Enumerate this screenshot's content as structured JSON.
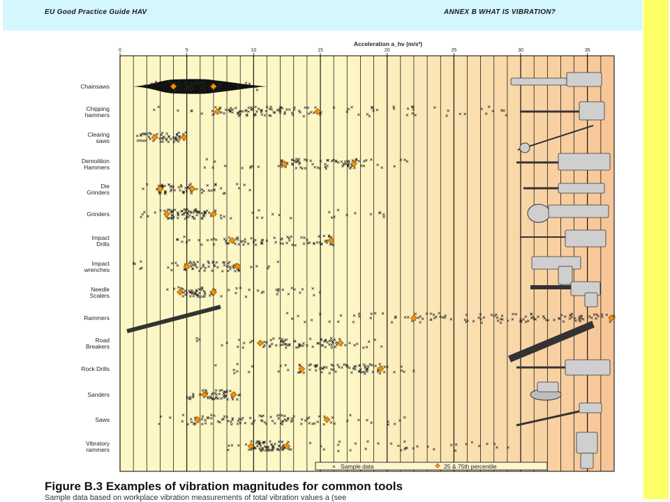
{
  "header": {
    "left": "EU Good Practice Guide HAV",
    "right": "ANNEX B WHAT IS VIBRATION?"
  },
  "caption": {
    "title": "Figure B.3 Examples of vibration magnitudes for common tools",
    "subtitle": "Sample data based on workplace vibration measurements of total vibration values a  (see"
  },
  "chart_data": {
    "type": "scatter",
    "title": "",
    "xlabel": "Acceleration a_hv (m/s²)",
    "xlim": [
      0,
      37
    ],
    "x_ticks": [
      0,
      5,
      10,
      15,
      20,
      25,
      30,
      35
    ],
    "legend": {
      "position": "bottom-right",
      "sample": "Sample data",
      "percentile": "25 & 75th percentile"
    },
    "categories": [
      "Chainsaws",
      "Chipping hammers",
      "Clearing saws",
      "Demolition Hammers",
      "Die Grinders",
      "Grinders",
      "Impact Drills",
      "Impact wrenches",
      "Needle Scalers",
      "Rammers",
      "Road Breakers",
      "Rock Drills",
      "Sanders",
      "Saws",
      "Vibratory rammers"
    ],
    "series": [
      {
        "name": "25 & 75th percentile",
        "values": [
          [
            4.0,
            7.0
          ],
          [
            7.3,
            14.8
          ],
          [
            2.6,
            4.8
          ],
          [
            12.3,
            17.5
          ],
          [
            3.0,
            5.4
          ],
          [
            3.5,
            7.0
          ],
          [
            8.4,
            15.8
          ],
          [
            5.0,
            8.8
          ],
          [
            4.5,
            7.0
          ],
          [
            22.0,
            36.8
          ],
          [
            10.5,
            16.5
          ],
          [
            13.6,
            19.5
          ],
          [
            6.3,
            8.5
          ],
          [
            5.8,
            15.5
          ],
          [
            9.8,
            12.5
          ]
        ]
      }
    ],
    "sample_ranges": [
      [
        1.0,
        11.0
      ],
      [
        2.5,
        30.0
      ],
      [
        1.2,
        5.0
      ],
      [
        6.0,
        22.0
      ],
      [
        1.5,
        10.0
      ],
      [
        1.0,
        20.0
      ],
      [
        4.0,
        17.0
      ],
      [
        1.0,
        12.0
      ],
      [
        3.0,
        15.0
      ],
      [
        11.0,
        37.0
      ],
      [
        5.0,
        20.0
      ],
      [
        7.0,
        22.0
      ],
      [
        5.0,
        9.0
      ],
      [
        2.0,
        22.0
      ],
      [
        8.0,
        30.0
      ]
    ],
    "colors": {
      "band_light": "#fdf7c6",
      "band_dark": "#f7c597",
      "marker": "#f59100",
      "grid": "#000000"
    }
  }
}
